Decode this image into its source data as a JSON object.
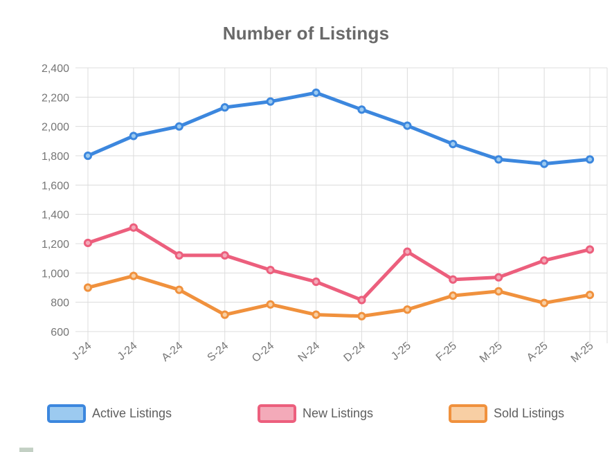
{
  "chart_data": {
    "type": "line",
    "title": "Number of Listings",
    "categories": [
      "J-24",
      "J-24",
      "A-24",
      "S-24",
      "O-24",
      "N-24",
      "D-24",
      "J-25",
      "F-25",
      "M-25",
      "A-25",
      "M-25"
    ],
    "series": [
      {
        "name": "Active Listings",
        "color": "#3c87de",
        "point_fill": "#9ccaf0",
        "values": [
          1800,
          1935,
          2000,
          2130,
          2170,
          2230,
          2115,
          2005,
          1880,
          1775,
          1745,
          1775
        ]
      },
      {
        "name": "New Listings",
        "color": "#ec5f7d",
        "point_fill": "#f3aab9",
        "values": [
          1205,
          1310,
          1120,
          1120,
          1020,
          940,
          815,
          1145,
          955,
          970,
          1085,
          1160
        ]
      },
      {
        "name": "Sold Listings",
        "color": "#f0913d",
        "point_fill": "#f8cfa4",
        "values": [
          900,
          980,
          885,
          715,
          785,
          715,
          705,
          750,
          845,
          875,
          795,
          850
        ]
      }
    ],
    "xlabel": "",
    "ylabel": "",
    "ylim": [
      600,
      2400
    ],
    "ytick_step": 200,
    "ytick_labels": [
      "600",
      "800",
      "1,000",
      "1,200",
      "1,400",
      "1,600",
      "1,800",
      "2,000",
      "2,200",
      "2,400"
    ],
    "grid": true,
    "legend_position": "bottom",
    "grid_color": "#dcdcdc",
    "title_color": "#696969",
    "axis_label_color": "#757575"
  }
}
